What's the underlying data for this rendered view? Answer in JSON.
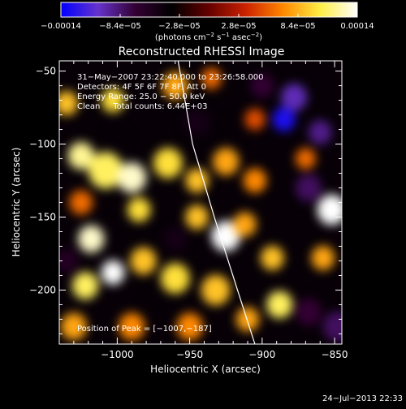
{
  "chart_data": {
    "type": "heatmap",
    "title": "Reconstructed RHESSI Image",
    "xlabel": "Heliocentric X (arcsec)",
    "ylabel": "Heliocentric Y (arcsec)",
    "xlim": [
      -1040,
      -845
    ],
    "ylim": [
      -237,
      -43
    ],
    "x_ticks": [
      -1000,
      -950,
      -900,
      -850
    ],
    "x_tick_labels": [
      "−1000",
      "−950",
      "−900",
      "−850"
    ],
    "y_ticks": [
      -50,
      -100,
      -150,
      -200
    ],
    "y_tick_labels": [
      "−50",
      "−100",
      "−150",
      "−200"
    ],
    "colorbar": {
      "min": -0.00014,
      "max": 0.00014,
      "tick_values": [
        -0.00014,
        -8.4e-05,
        -2.8e-05,
        2.8e-05,
        8.4e-05,
        0.00014
      ],
      "tick_labels": [
        "−0.00014",
        "−8.4e−05",
        "−2.8e−05",
        "2.8e−05",
        "8.4e−05",
        "0.00014"
      ],
      "unit_label_parts": [
        "(photons cm",
        "−2",
        " s",
        "−1",
        " asec",
        "−2",
        ")"
      ],
      "colors": [
        "#0000ff",
        "#6633cc",
        "#330033",
        "#000000",
        "#660000",
        "#cc2200",
        "#ff8800",
        "#ffee44",
        "#ffffff"
      ]
    },
    "info_lines": [
      "31−May−2007 23:22:40.000 to 23:26:58.000",
      "Detectors: 4F 5F 6F 7F 8F, Att 0",
      "Energy Range: 25.0 − 50.0 keV",
      "Clean     Total counts: 6.44E+03"
    ],
    "peak_label": "Position of Peak = [−1007,−187]",
    "peak_position": [
      -1007,
      -187
    ],
    "limb_curve": [
      [
        -958,
        -43
      ],
      [
        -948,
        -100
      ],
      [
        -933,
        -150
      ],
      [
        -917,
        -200
      ],
      [
        -905,
        -237
      ]
    ],
    "background_level": -4e-05,
    "blobs": [
      {
        "x": -1025,
        "y": -108,
        "v": 0.00012,
        "r": 9
      },
      {
        "x": -1008,
        "y": -118,
        "v": 0.00011,
        "r": 12
      },
      {
        "x": -990,
        "y": -123,
        "v": 0.00013,
        "r": 10
      },
      {
        "x": -1003,
        "y": -70,
        "v": 0.0001,
        "r": 8
      },
      {
        "x": -1035,
        "y": -72,
        "v": 9e-05,
        "r": 8
      },
      {
        "x": -965,
        "y": -113,
        "v": 0.0001,
        "r": 10
      },
      {
        "x": -945,
        "y": -125,
        "v": 9e-05,
        "r": 8
      },
      {
        "x": -925,
        "y": -112,
        "v": 8e-05,
        "r": 9
      },
      {
        "x": -905,
        "y": -125,
        "v": 7e-05,
        "r": 8
      },
      {
        "x": -1018,
        "y": -165,
        "v": 0.00013,
        "r": 9
      },
      {
        "x": -1003,
        "y": -188,
        "v": 0.00014,
        "r": 8
      },
      {
        "x": -1022,
        "y": -197,
        "v": 0.00011,
        "r": 9
      },
      {
        "x": -982,
        "y": -180,
        "v": 9e-05,
        "r": 9
      },
      {
        "x": -960,
        "y": -192,
        "v": 0.0001,
        "r": 10
      },
      {
        "x": -985,
        "y": -145,
        "v": 0.0001,
        "r": 8
      },
      {
        "x": -945,
        "y": -150,
        "v": 9e-05,
        "r": 8
      },
      {
        "x": -925,
        "y": -163,
        "v": 0.00014,
        "r": 10
      },
      {
        "x": -912,
        "y": -155,
        "v": 8e-05,
        "r": 8
      },
      {
        "x": -932,
        "y": -200,
        "v": 9e-05,
        "r": 10
      },
      {
        "x": -893,
        "y": -178,
        "v": 9e-05,
        "r": 8
      },
      {
        "x": -888,
        "y": -210,
        "v": 0.00011,
        "r": 9
      },
      {
        "x": -910,
        "y": -220,
        "v": 8e-05,
        "r": 8
      },
      {
        "x": -852,
        "y": -145,
        "v": 0.00014,
        "r": 10
      },
      {
        "x": -858,
        "y": -178,
        "v": 8e-05,
        "r": 8
      },
      {
        "x": -1030,
        "y": -225,
        "v": 8e-05,
        "r": 9
      },
      {
        "x": -990,
        "y": -225,
        "v": 7e-05,
        "r": 9
      },
      {
        "x": -960,
        "y": -60,
        "v": 8e-05,
        "r": 9
      },
      {
        "x": -935,
        "y": -55,
        "v": 6e-05,
        "r": 7
      },
      {
        "x": -905,
        "y": -83,
        "v": 5e-05,
        "r": 7
      },
      {
        "x": -870,
        "y": -110,
        "v": 6e-05,
        "r": 7
      },
      {
        "x": -1025,
        "y": -140,
        "v": 6e-05,
        "r": 8
      },
      {
        "x": -950,
        "y": -225,
        "v": 7e-05,
        "r": 9
      },
      {
        "x": -885,
        "y": -83,
        "v": -0.00013,
        "r": 8
      },
      {
        "x": -878,
        "y": -68,
        "v": -0.0001,
        "r": 9
      },
      {
        "x": -860,
        "y": -92,
        "v": -9e-05,
        "r": 8
      },
      {
        "x": -900,
        "y": -60,
        "v": -7e-05,
        "r": 8
      },
      {
        "x": -868,
        "y": -130,
        "v": -8e-05,
        "r": 9
      },
      {
        "x": -848,
        "y": -225,
        "v": -8e-05,
        "r": 10
      },
      {
        "x": -868,
        "y": -215,
        "v": -7e-05,
        "r": 9
      },
      {
        "x": -1035,
        "y": -180,
        "v": -6e-05,
        "r": 8
      },
      {
        "x": -960,
        "y": -165,
        "v": -5e-05,
        "r": 8
      },
      {
        "x": -945,
        "y": -85,
        "v": -5e-05,
        "r": 9
      },
      {
        "x": -1000,
        "y": -95,
        "v": -4e-05,
        "r": 7
      },
      {
        "x": -1005,
        "y": -150,
        "v": -4e-05,
        "r": 6
      },
      {
        "x": -975,
        "y": -210,
        "v": -4e-05,
        "r": 7
      },
      {
        "x": -920,
        "y": -90,
        "v": -4e-05,
        "r": 7
      }
    ],
    "timestamp": "24−Jul−2013 22:33"
  }
}
